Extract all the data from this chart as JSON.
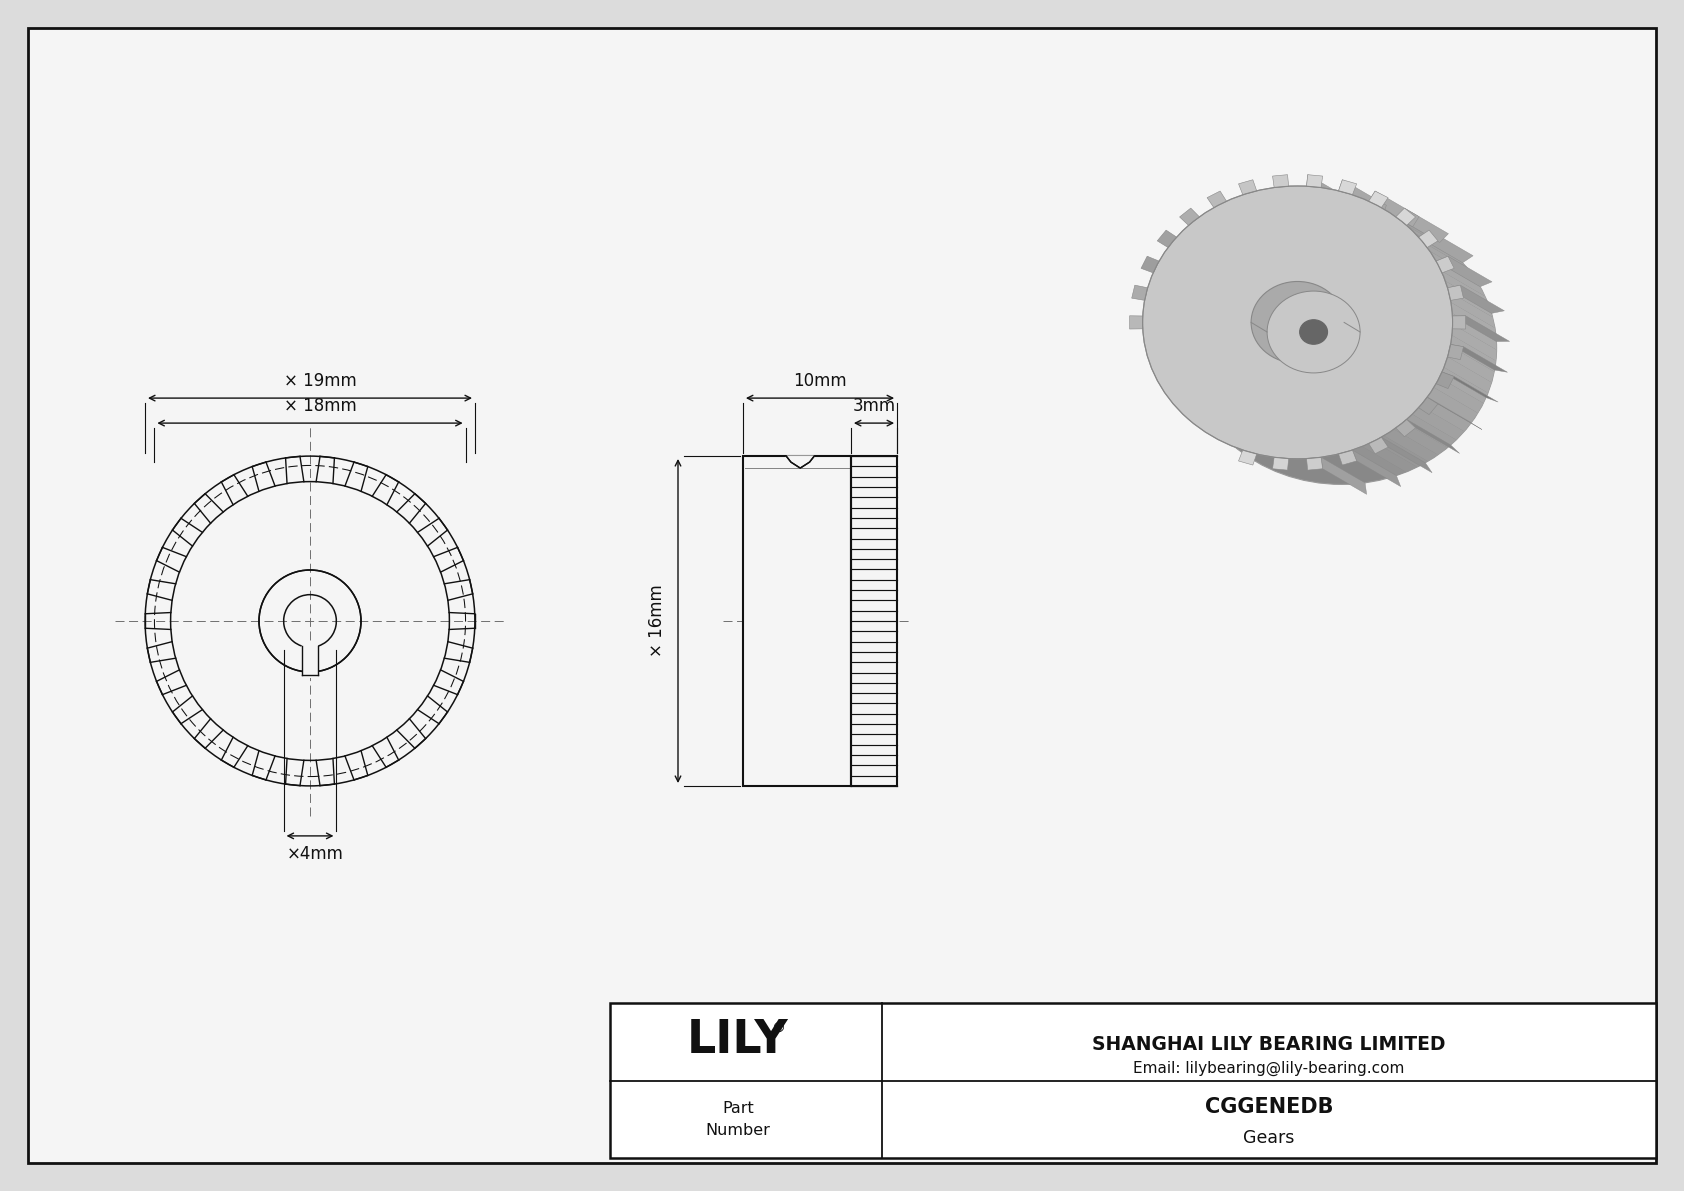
{
  "bg_color": "#dcdcdc",
  "drawing_bg": "#f5f5f5",
  "line_color": "#111111",
  "company": "SHANGHAI LILY BEARING LIMITED",
  "email": "Email: lilybearing@lily-bearing.com",
  "title": "CGGENEDB",
  "subtitle": "Gears",
  "dim_outer": "× 19mm",
  "dim_pitch": "× 18mm",
  "dim_bore": "×4mm",
  "dim_height": "× 16mm",
  "dim_width_total": "10mm",
  "dim_width_hub": "3mm",
  "num_teeth": 30,
  "gear3d_color_light": "#c8c8c8",
  "gear3d_color_mid": "#aaaaaa",
  "gear3d_color_dark": "#888888",
  "gear3d_color_darker": "#666666"
}
